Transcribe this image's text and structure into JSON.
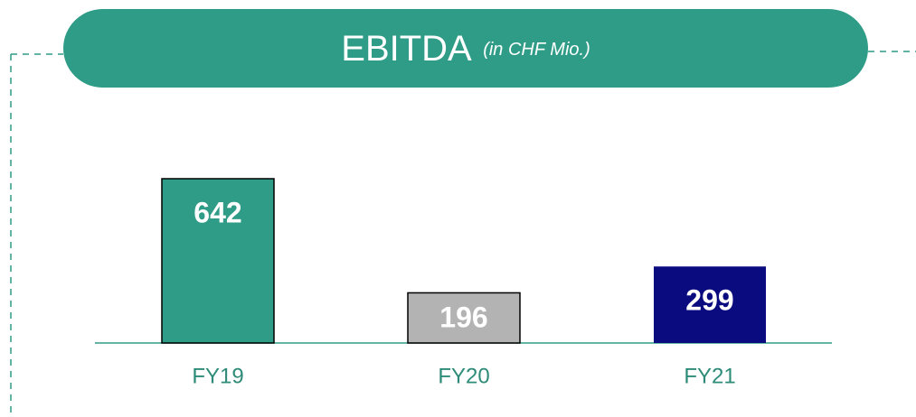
{
  "chart_data": {
    "type": "bar",
    "title": "EBITDA",
    "subtitle": "(in CHF Mio.)",
    "categories": [
      "FY19",
      "FY20",
      "FY21"
    ],
    "values": [
      642,
      196,
      299
    ],
    "colors": [
      "#2e9c86",
      "#b3b3b3",
      "#0b0b80"
    ]
  }
}
